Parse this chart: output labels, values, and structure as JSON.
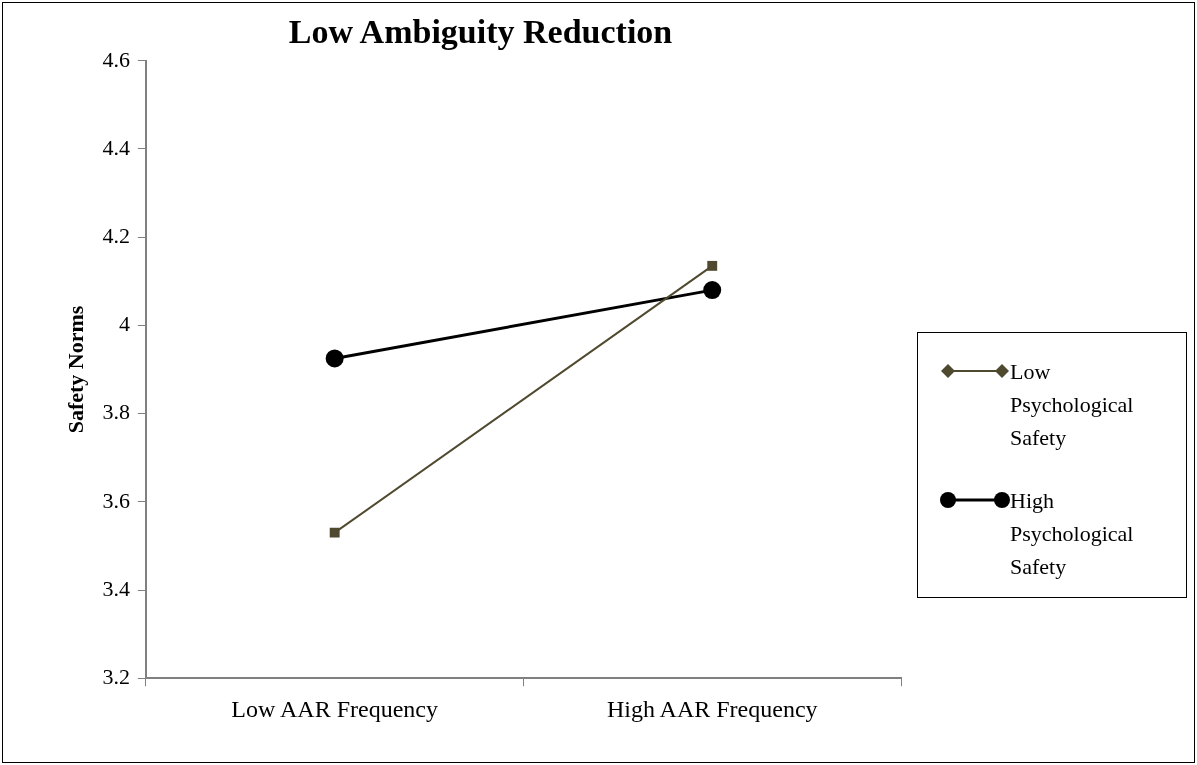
{
  "chart_data": {
    "type": "line",
    "title": "Low Ambiguity Reduction",
    "ylabel": "Safety Norms",
    "categories": [
      "Low AAR Frequency",
      "High AAR Frequency"
    ],
    "series": [
      {
        "name": "Low Psychological Safety",
        "color": "#4f4a2f",
        "values": [
          3.53,
          4.135
        ],
        "marker": "square"
      },
      {
        "name": "High Psychological Safety",
        "color": "#000000",
        "values": [
          3.925,
          4.08
        ],
        "marker": "circle"
      }
    ],
    "ylim": [
      3.2,
      4.6
    ],
    "yticks": [
      3.2,
      3.4,
      3.6,
      3.8,
      4,
      4.2,
      4.4,
      4.6
    ],
    "grid": false,
    "legend": "right",
    "line_style": "solid"
  }
}
